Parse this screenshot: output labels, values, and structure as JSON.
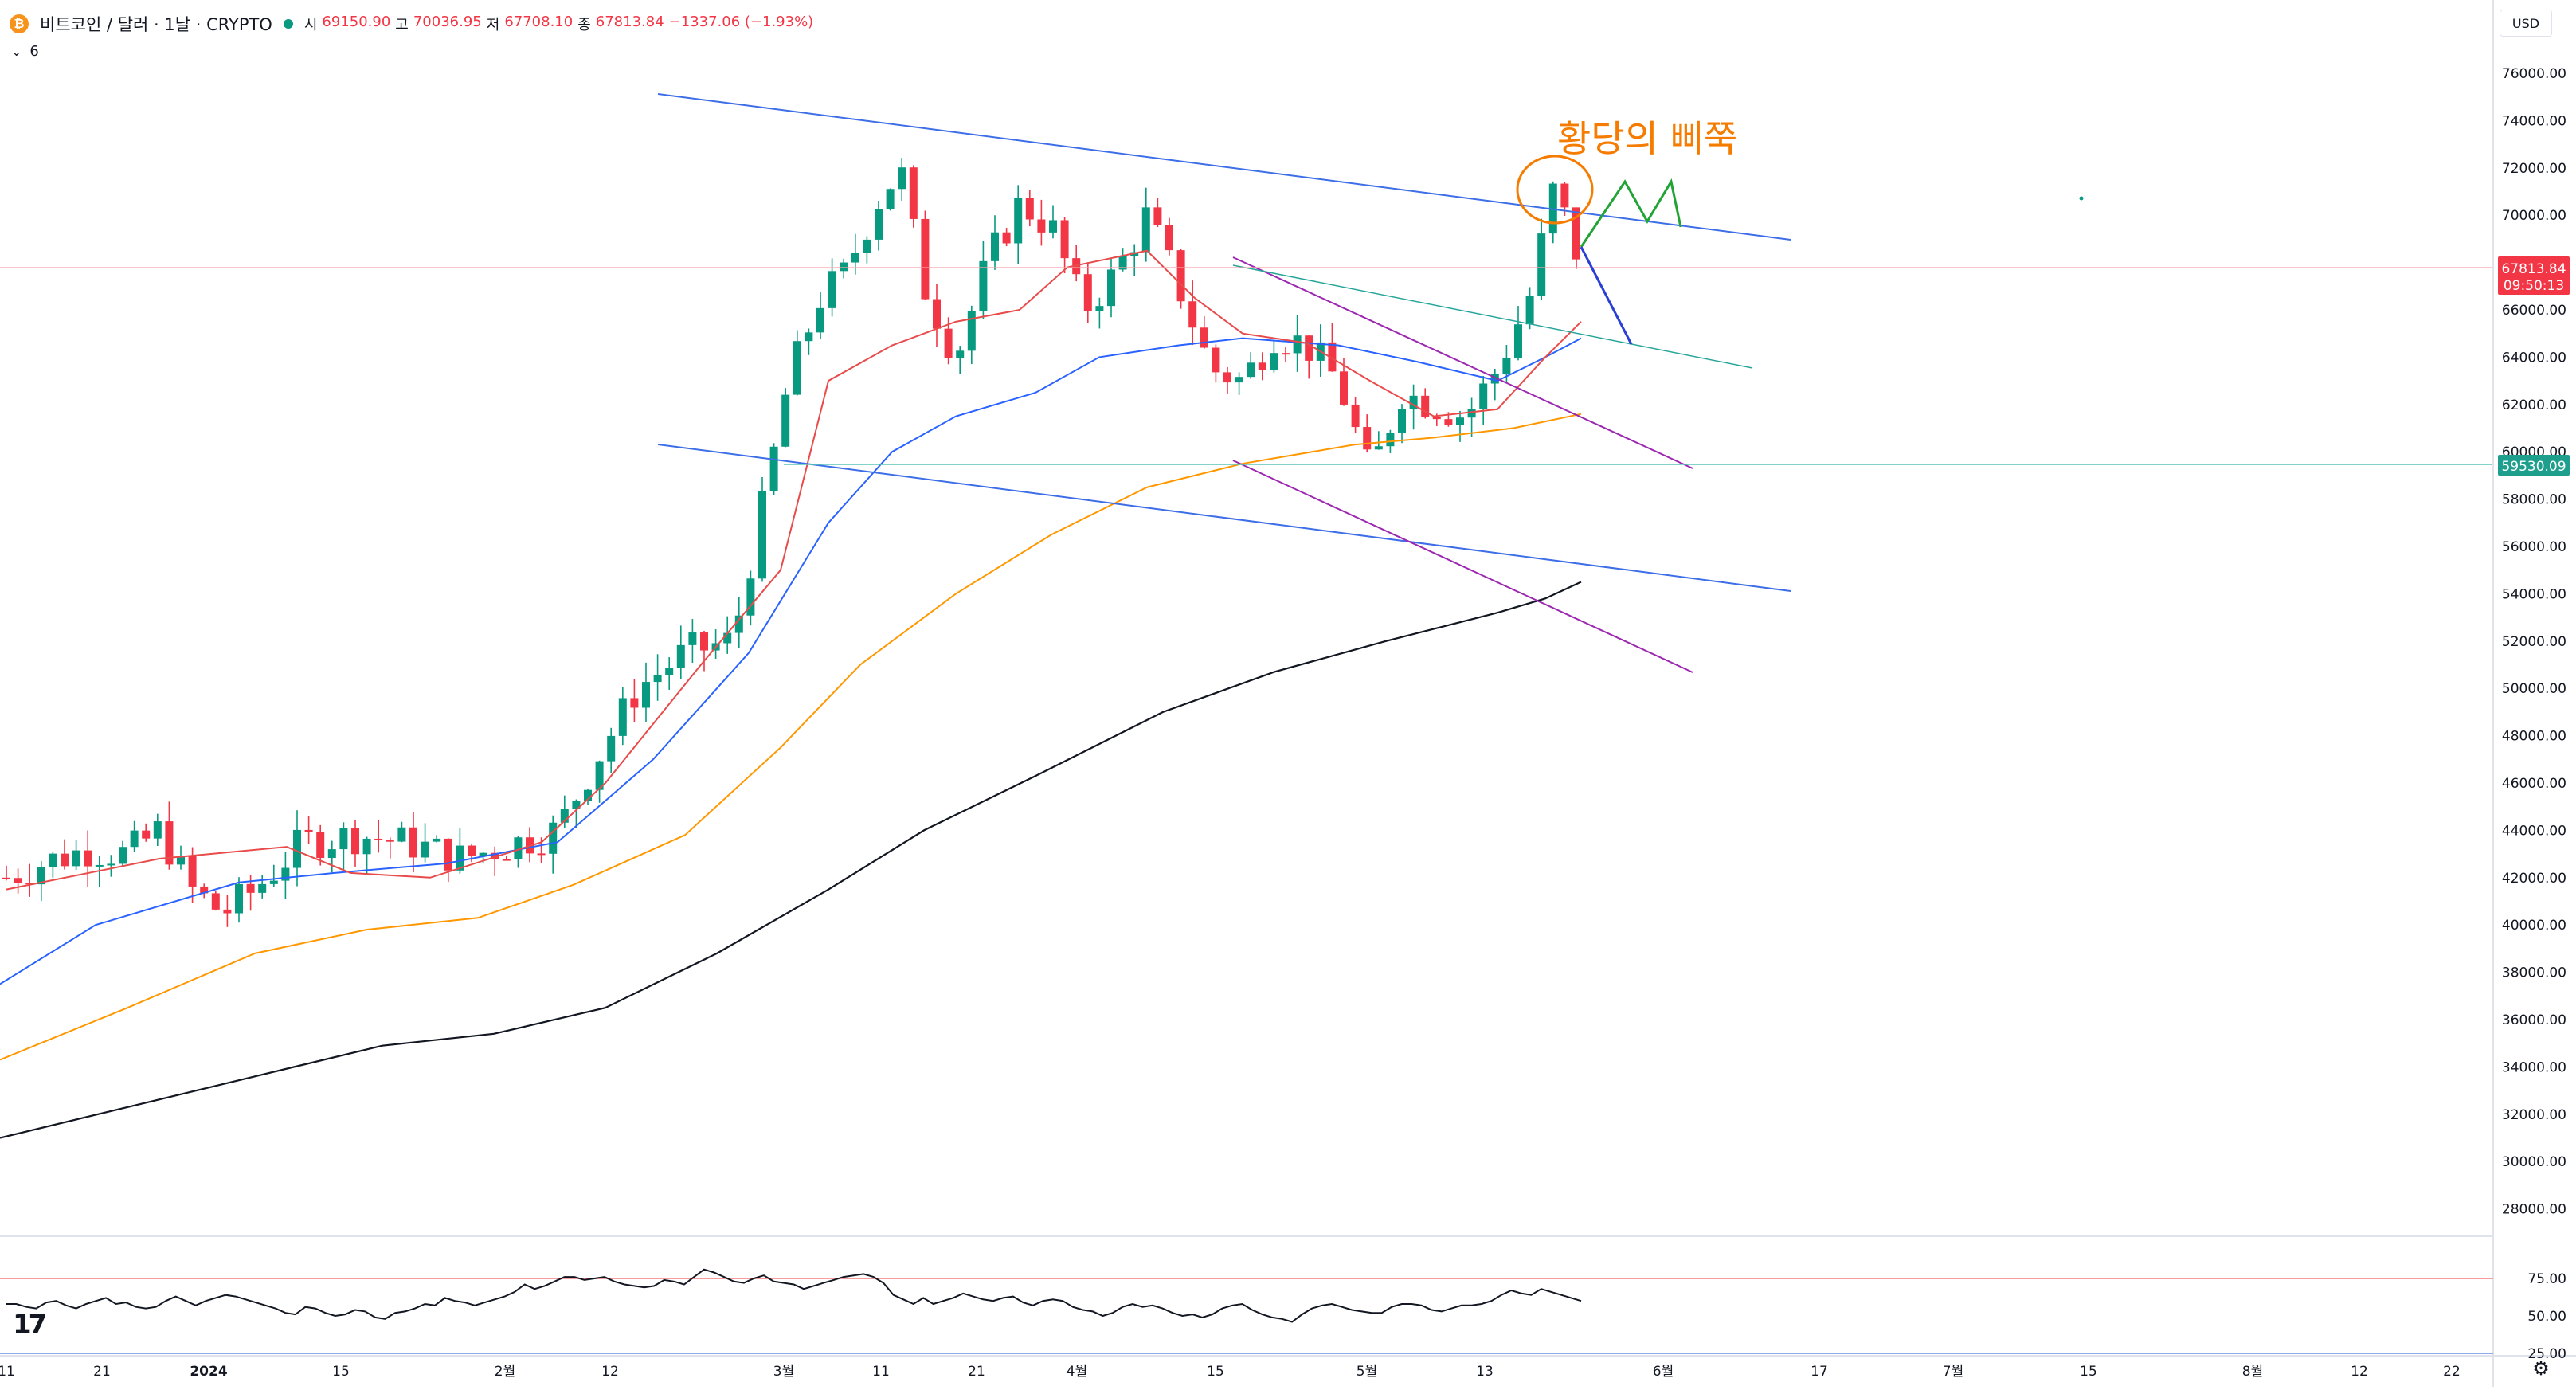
{
  "header": {
    "symbol": "비트코인 / 달러 · 1날 · CRYPTO",
    "coin_icon": "bitcoin-icon",
    "open_label": "시",
    "open_value": "69150.90",
    "high_label": "고",
    "high_value": "70036.95",
    "low_label": "저",
    "low_value": "67708.10",
    "close_label": "종",
    "close_value": "67813.84",
    "change_value": "−1337.06 (−1.93%)",
    "indicator_count": "6",
    "currency": "USD"
  },
  "colors": {
    "up": "#089981",
    "down": "#f23645",
    "ema_red": "#e94b4b",
    "ema_blue": "#2962ff",
    "ema_orange": "#ff9800",
    "ema_black": "#131722",
    "channel_blue": "#3d6ee8",
    "purple": "#9c27b0",
    "teal_line": "#26a69a",
    "annotation": "#f57c00",
    "green_projection": "#21a336",
    "blue_projection": "#2a3fd6"
  },
  "annotation_text": "황당의 삐쭉",
  "chart_data": {
    "type": "candlestick",
    "ylim": [
      26000,
      77000
    ],
    "y_ticks": [
      "76000.00",
      "74000.00",
      "72000.00",
      "70000.00",
      "68000.00",
      "66000.00",
      "64000.00",
      "62000.00",
      "60000.00",
      "58000.00",
      "56000.00",
      "54000.00",
      "52000.00",
      "50000.00",
      "48000.00",
      "46000.00",
      "44000.00",
      "42000.00",
      "40000.00",
      "38000.00",
      "36000.00",
      "34000.00",
      "32000.00",
      "30000.00",
      "28000.00"
    ],
    "x_ticks": [
      "11",
      "21",
      "2024",
      "15",
      "2월",
      "12",
      "3월",
      "11",
      "21",
      "4월",
      "15",
      "5월",
      "13",
      "6월",
      "17",
      "7월",
      "15",
      "8월",
      "12",
      "22"
    ],
    "price_labels": {
      "last_price": "67813.84",
      "countdown": "09:50:13",
      "level": "59530.09"
    },
    "rsi": {
      "ticks": [
        "75.00",
        "50.00",
        "25.00"
      ],
      "upper": 75,
      "lower": 25,
      "values": [
        58,
        58,
        56,
        55,
        59,
        60,
        57,
        55,
        58,
        60,
        62,
        58,
        59,
        56,
        55,
        56,
        60,
        63,
        60,
        57,
        60,
        62,
        64,
        63,
        61,
        59,
        57,
        55,
        52,
        51,
        56,
        55,
        52,
        50,
        51,
        54,
        53,
        49,
        48,
        52,
        53,
        55,
        58,
        57,
        62,
        60,
        59,
        57,
        59,
        61,
        63,
        66,
        71,
        68,
        70,
        73,
        76,
        76,
        74,
        75,
        76,
        73,
        71,
        70,
        69,
        70,
        74,
        73,
        71,
        76,
        81,
        79,
        76,
        73,
        72,
        75,
        77,
        73,
        72,
        71,
        68,
        70,
        72,
        74,
        76,
        77,
        78,
        76,
        72,
        64,
        61,
        58,
        62,
        58,
        60,
        62,
        65,
        63,
        61,
        60,
        62,
        63,
        59,
        57,
        60,
        61,
        60,
        56,
        54,
        53,
        50,
        52,
        56,
        58,
        56,
        57,
        55,
        52,
        50,
        51,
        49,
        51,
        55,
        57,
        58,
        54,
        51,
        49,
        48,
        46,
        51,
        55,
        57,
        58,
        56,
        54,
        53,
        52,
        52,
        56,
        58,
        58,
        57,
        54,
        53,
        55,
        57,
        57,
        58,
        60,
        64,
        67,
        65,
        64,
        68,
        66,
        64,
        62,
        60
      ]
    }
  }
}
